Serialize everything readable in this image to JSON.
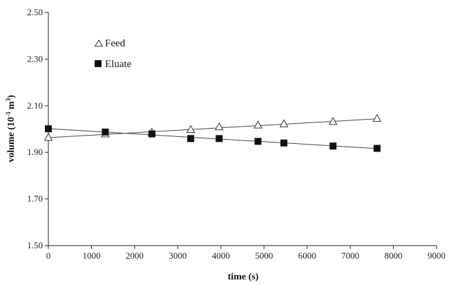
{
  "chart_data": {
    "type": "scatter",
    "title": "",
    "xlabel": "time (s)",
    "ylabel": "volume (10⁻³ m³)",
    "ylabel_parts": {
      "main": "volume (10",
      "exp1": "-3",
      "mid": " m",
      "exp2": "3",
      "close": ")"
    },
    "xlim": [
      0,
      9000
    ],
    "ylim": [
      1.5,
      2.5
    ],
    "x_ticks": [
      "0",
      "1000",
      "2000",
      "3000",
      "4000",
      "5000",
      "6000",
      "7000",
      "8000",
      "9000"
    ],
    "y_ticks": [
      "1.50",
      "1.70",
      "1.90",
      "2.10",
      "2.30",
      "2.50"
    ],
    "grid": false,
    "legend_position": "top-left",
    "series": [
      {
        "name": "Feed",
        "marker": "open-triangle",
        "color": "#333333",
        "trendline": true,
        "points": [
          {
            "x": 0,
            "y": 1.963
          },
          {
            "x": 1320,
            "y": 1.978
          },
          {
            "x": 2400,
            "y": 1.985
          },
          {
            "x": 3300,
            "y": 1.997
          },
          {
            "x": 3960,
            "y": 2.008
          },
          {
            "x": 4860,
            "y": 2.016
          },
          {
            "x": 5460,
            "y": 2.021
          },
          {
            "x": 6600,
            "y": 2.031
          },
          {
            "x": 7620,
            "y": 2.044
          }
        ]
      },
      {
        "name": "Eluate",
        "marker": "filled-square",
        "color": "#111111",
        "trendline": true,
        "points": [
          {
            "x": 0,
            "y": 2.001
          },
          {
            "x": 1320,
            "y": 1.987
          },
          {
            "x": 2400,
            "y": 1.979
          },
          {
            "x": 3300,
            "y": 1.959
          },
          {
            "x": 3960,
            "y": 1.959
          },
          {
            "x": 4860,
            "y": 1.947
          },
          {
            "x": 5460,
            "y": 1.94
          },
          {
            "x": 6600,
            "y": 1.927
          },
          {
            "x": 7620,
            "y": 1.917
          }
        ]
      }
    ]
  }
}
